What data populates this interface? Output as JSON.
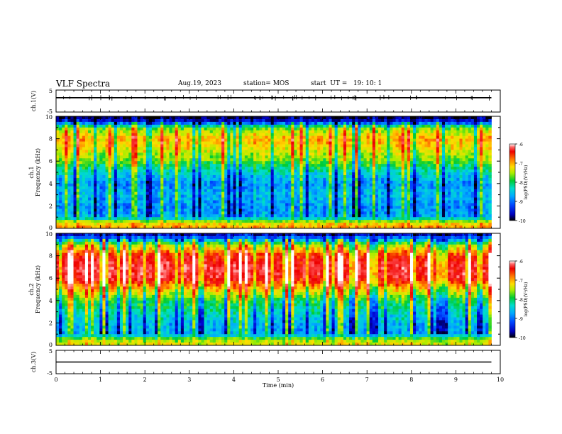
{
  "header": {
    "title": "VLF Spectra",
    "date": "Aug.19, 2023",
    "station": "station= MOS",
    "start_ut": "start  UT =   19: 10: 1"
  },
  "chart_data": [
    {
      "type": "line",
      "panel": "ch1-waveform",
      "ylabel": "ch.1(V)",
      "ylim": [
        -5,
        5
      ],
      "yticks": [
        "5",
        "-5"
      ],
      "series": [
        {
          "values": [
            1.5,
            1.5
          ]
        }
      ],
      "x": [
        0,
        9.8
      ]
    },
    {
      "type": "heatmap",
      "panel": "ch1-spectrogram",
      "ylabel": "ch.1\nFrequency (kHz)",
      "ylim": [
        0,
        10
      ],
      "yticks": [
        "0",
        "2",
        "4",
        "6",
        "8",
        "10"
      ],
      "colorbar": {
        "label": "log(PSD)(V²/Hz)",
        "range": [
          -10,
          -6
        ],
        "ticks": [
          "-6",
          "-7",
          "-8",
          "-9",
          "-10"
        ]
      },
      "band_profile": {
        "freq_khz": [
          0,
          0.5,
          1,
          2,
          3,
          4,
          5,
          6,
          7,
          8,
          9,
          9.5,
          10
        ],
        "log_psd": [
          -7.2,
          -7.5,
          -8.9,
          -9.0,
          -8.8,
          -9.0,
          -8.6,
          -8.0,
          -7.6,
          -7.3,
          -8.0,
          -9.5,
          -10
        ]
      }
    },
    {
      "type": "heatmap",
      "panel": "ch2-spectrogram",
      "ylabel": "ch.2\nFrequency (kHz)",
      "ylim": [
        0,
        10
      ],
      "yticks": [
        "0",
        "2",
        "4",
        "6",
        "8",
        "10"
      ],
      "colorbar": {
        "label": "log(PSD)(V²/Hz)",
        "range": [
          -10,
          -6
        ],
        "ticks": [
          "-6",
          "-7",
          "-8",
          "-9",
          "-10"
        ]
      },
      "band_profile": {
        "freq_khz": [
          0,
          0.5,
          1,
          2,
          3,
          4,
          5,
          6,
          7,
          8,
          9,
          9.5,
          10
        ],
        "log_psd": [
          -7.5,
          -7.8,
          -8.9,
          -8.8,
          -8.5,
          -8.2,
          -7.4,
          -6.6,
          -6.5,
          -6.8,
          -7.8,
          -9.0,
          -9.8
        ]
      }
    },
    {
      "type": "line",
      "panel": "ch3-waveform",
      "ylabel": "ch.3(V)",
      "ylim": [
        -5,
        5
      ],
      "yticks": [
        "5",
        "-5"
      ],
      "series": [
        {
          "values": [
            0,
            0
          ]
        }
      ],
      "x": [
        0,
        9.8
      ]
    }
  ],
  "xaxis": {
    "label": "Time  (min)",
    "range": [
      0,
      10
    ],
    "ticks": [
      "0",
      "1",
      "2",
      "3",
      "4",
      "5",
      "6",
      "7",
      "8",
      "9",
      "10"
    ],
    "data_end": 9.8
  },
  "colors": {
    "colormap": [
      "#000000",
      "#0000cc",
      "#0044ff",
      "#00aaff",
      "#00ddcc",
      "#00cc33",
      "#aaee00",
      "#ffdd00",
      "#ff7700",
      "#ee0000",
      "#ff5555",
      "#ffffff"
    ]
  }
}
